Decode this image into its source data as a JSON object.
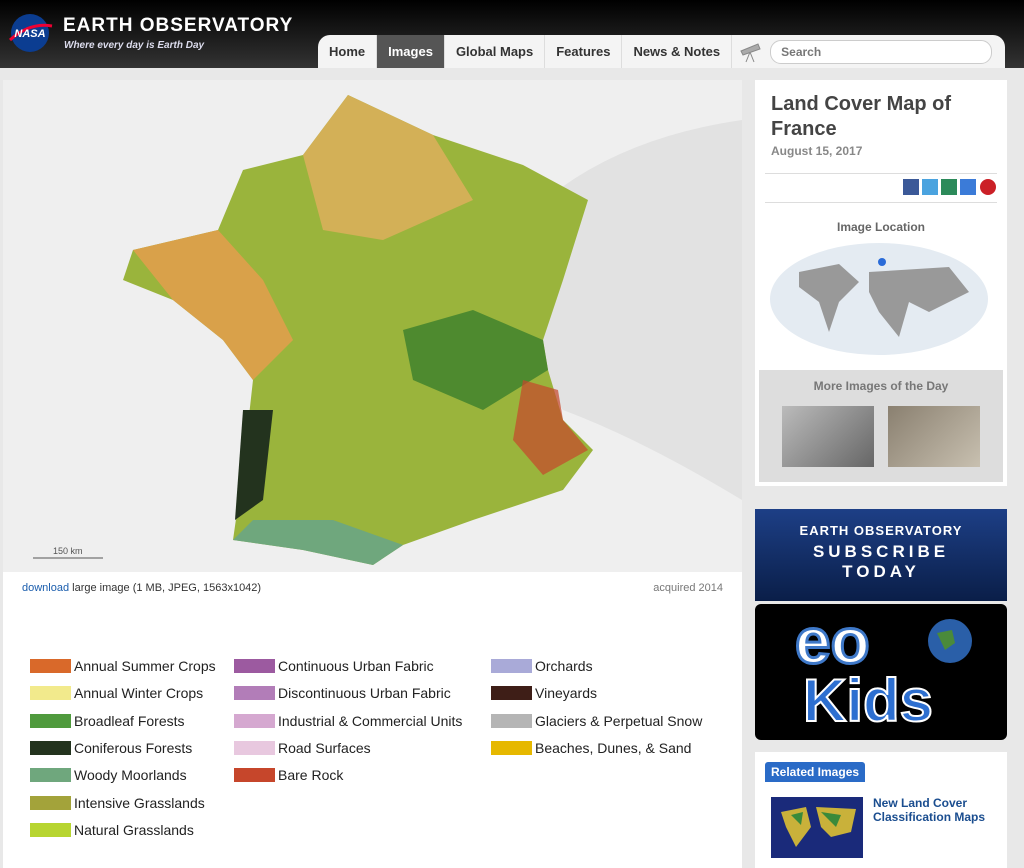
{
  "header": {
    "nasa": "NASA",
    "site_name": "EARTH OBSERVATORY",
    "tagline": "Where every day is Earth Day",
    "nav": [
      "Home",
      "Images",
      "Global Maps",
      "Features",
      "News & Notes"
    ],
    "active_nav": 1,
    "search": "Search"
  },
  "image": {
    "scale": "150 km",
    "caption_link": "download",
    "caption_text": "large image (1 MB, JPEG, 1563x1042)",
    "acquired": "acquired 2014"
  },
  "legend": {
    "columns": [
      [
        {
          "label": "Annual Summer Crops",
          "color": "#d9692a"
        },
        {
          "label": "Annual Winter Crops",
          "color": "#f2ea8c"
        },
        {
          "label": "Broadleaf Forests",
          "color": "#4f9a3d"
        },
        {
          "label": "Coniferous Forests",
          "color": "#23331e"
        },
        {
          "label": "Woody Moorlands",
          "color": "#6fa77d"
        },
        {
          "label": "Intensive Grasslands",
          "color": "#a3a33a"
        },
        {
          "label": "Natural Grasslands",
          "color": "#b7d531"
        }
      ],
      [
        {
          "label": "Continuous Urban Fabric",
          "color": "#9c5aa0"
        },
        {
          "label": "Discontinuous Urban Fabric",
          "color": "#b27db8"
        },
        {
          "label": "Industrial & Commercial Units",
          "color": "#d5a8d0"
        },
        {
          "label": "Road Surfaces",
          "color": "#e8c8df"
        },
        {
          "label": "Bare Rock",
          "color": "#c6462b"
        }
      ],
      [
        {
          "label": "Orchards",
          "color": "#a9aad8"
        },
        {
          "label": "Vineyards",
          "color": "#3e1e17"
        },
        {
          "label": "Glaciers & Perpetual Snow",
          "color": "#b5b5b5"
        },
        {
          "label": "Beaches, Dunes, & Sand",
          "color": "#e6b800"
        }
      ]
    ]
  },
  "sidebar": {
    "title": "Land Cover Map of France",
    "date": "August 15, 2017",
    "location_heading": "Image Location",
    "more_heading": "More Images of the Day",
    "banner_name": "EARTH OBSERVATORY",
    "banner_cta": "SUBSCRIBE TODAY",
    "kids_eo": "eo",
    "kids_text": "Kids",
    "related_heading": "Related Images",
    "related_title": "New Land Cover Classification Maps"
  }
}
